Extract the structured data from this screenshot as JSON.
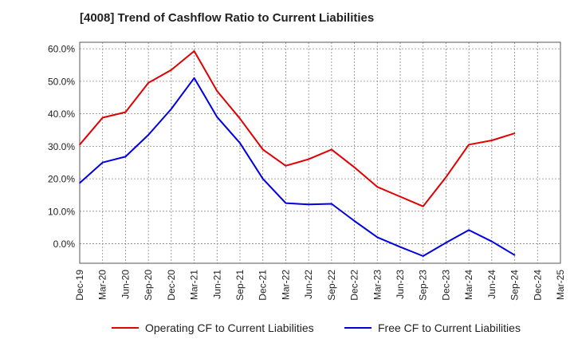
{
  "chart_data": {
    "type": "line",
    "title": "[4008]  Trend of Cashflow Ratio to Current Liabilities",
    "xlabel": "",
    "ylabel": "",
    "categories": [
      "Dec-19",
      "Mar-20",
      "Jun-20",
      "Sep-20",
      "Dec-20",
      "Mar-21",
      "Jun-21",
      "Sep-21",
      "Dec-21",
      "Mar-22",
      "Jun-22",
      "Sep-22",
      "Dec-22",
      "Mar-23",
      "Jun-23",
      "Sep-23",
      "Dec-23",
      "Mar-24",
      "Jun-24",
      "Sep-24",
      "Dec-24",
      "Mar-25"
    ],
    "y_ticks": [
      "0.0%",
      "10.0%",
      "20.0%",
      "30.0%",
      "40.0%",
      "50.0%",
      "60.0%"
    ],
    "ylim": [
      -6,
      62
    ],
    "grid": true,
    "legend_position": "bottom",
    "series": [
      {
        "name": "Operating CF to Current Liabilities",
        "color": "#e00000",
        "values": [
          30.5,
          38.8,
          40.5,
          49.5,
          53.5,
          59.3,
          47.0,
          38.5,
          29.0,
          24.0,
          26.0,
          29.0,
          23.5,
          17.5,
          14.5,
          11.5,
          20.5,
          30.5,
          31.8,
          34.0,
          null,
          null
        ]
      },
      {
        "name": "Free CF to Current Liabilities",
        "color": "#0000e0",
        "values": [
          18.7,
          25.0,
          26.8,
          33.5,
          41.5,
          51.0,
          39.0,
          31.0,
          20.0,
          12.5,
          12.1,
          12.3,
          7.0,
          2.0,
          -1.0,
          -3.8,
          0.3,
          4.2,
          0.7,
          -3.5,
          null,
          null
        ]
      }
    ]
  }
}
